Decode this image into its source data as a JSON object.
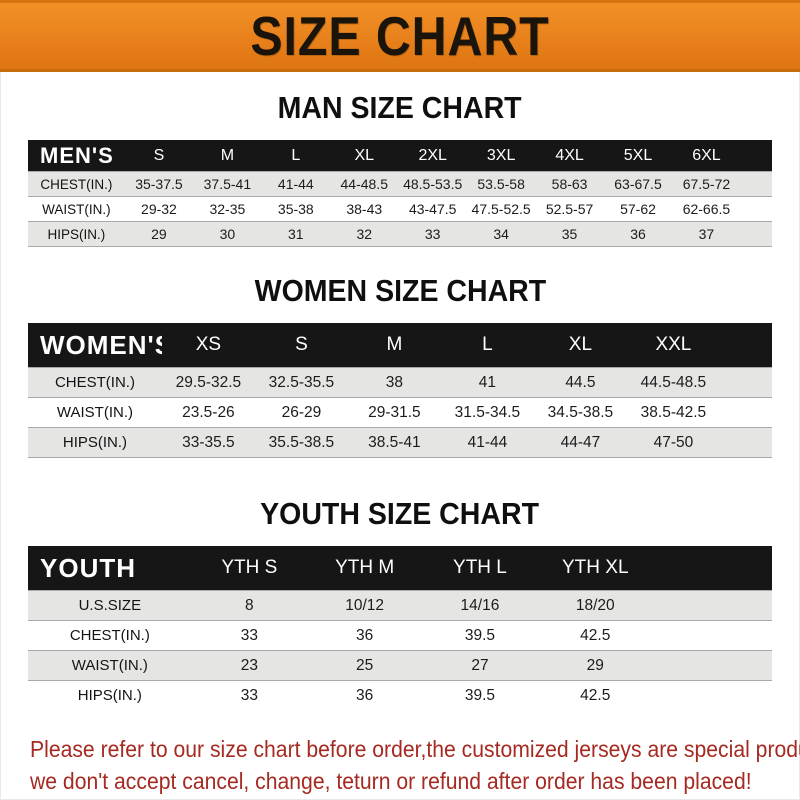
{
  "banner": {
    "title": "SIZE CHART"
  },
  "colors": {
    "banner_bg": "#E8811C",
    "header_bar_bg": "#161616",
    "row_stripe_bg": "#E5E5E3",
    "footer_text": "#A52A21"
  },
  "sections": [
    {
      "id": "men",
      "title": "MAN SIZE CHART",
      "group_label": "MEN'S",
      "columns": [
        "S",
        "M",
        "L",
        "XL",
        "2XL",
        "3XL",
        "4XL",
        "5XL",
        "6XL"
      ],
      "rows": [
        {
          "label": "CHEST(IN.)",
          "values": [
            "35-37.5",
            "37.5-41",
            "41-44",
            "44-48.5",
            "48.5-53.5",
            "53.5-58",
            "58-63",
            "63-67.5",
            "67.5-72"
          ]
        },
        {
          "label": "WAIST(IN.)",
          "values": [
            "29-32",
            "32-35",
            "35-38",
            "38-43",
            "43-47.5",
            "47.5-52.5",
            "52.5-57",
            "57-62",
            "62-66.5"
          ]
        },
        {
          "label": "HIPS(IN.)",
          "values": [
            "29",
            "30",
            "31",
            "32",
            "33",
            "34",
            "35",
            "36",
            "37"
          ]
        }
      ]
    },
    {
      "id": "women",
      "title": "WOMEN SIZE CHART",
      "group_label": "WOMEN'S",
      "columns": [
        "XS",
        "S",
        "M",
        "L",
        "XL",
        "XXL"
      ],
      "rows": [
        {
          "label": "CHEST(IN.)",
          "values": [
            "29.5-32.5",
            "32.5-35.5",
            "38",
            "41",
            "44.5",
            "44.5-48.5"
          ]
        },
        {
          "label": "WAIST(IN.)",
          "values": [
            "23.5-26",
            "26-29",
            "29-31.5",
            "31.5-34.5",
            "34.5-38.5",
            "38.5-42.5"
          ]
        },
        {
          "label": "HIPS(IN.)",
          "values": [
            "33-35.5",
            "35.5-38.5",
            "38.5-41",
            "41-44",
            "44-47",
            "47-50"
          ]
        }
      ]
    },
    {
      "id": "youth",
      "title": "YOUTH SIZE CHART",
      "group_label": "YOUTH",
      "columns": [
        "YTH S",
        "YTH M",
        "YTH L",
        "YTH XL"
      ],
      "rows": [
        {
          "label": "U.S.SIZE",
          "values": [
            "8",
            "10/12",
            "14/16",
            "18/20"
          ]
        },
        {
          "label": "CHEST(IN.)",
          "values": [
            "33",
            "36",
            "39.5",
            "42.5"
          ]
        },
        {
          "label": "WAIST(IN.)",
          "values": [
            "23",
            "25",
            "27",
            "29"
          ]
        },
        {
          "label": "HIPS(IN.)",
          "values": [
            "33",
            "36",
            "39.5",
            "42.5"
          ]
        }
      ]
    }
  ],
  "footer": {
    "line1": "Please refer to our size chart before order,the customized jerseys are special products,",
    "line2": "we don't accept cancel, change, teturn or refund after order has been placed!"
  }
}
